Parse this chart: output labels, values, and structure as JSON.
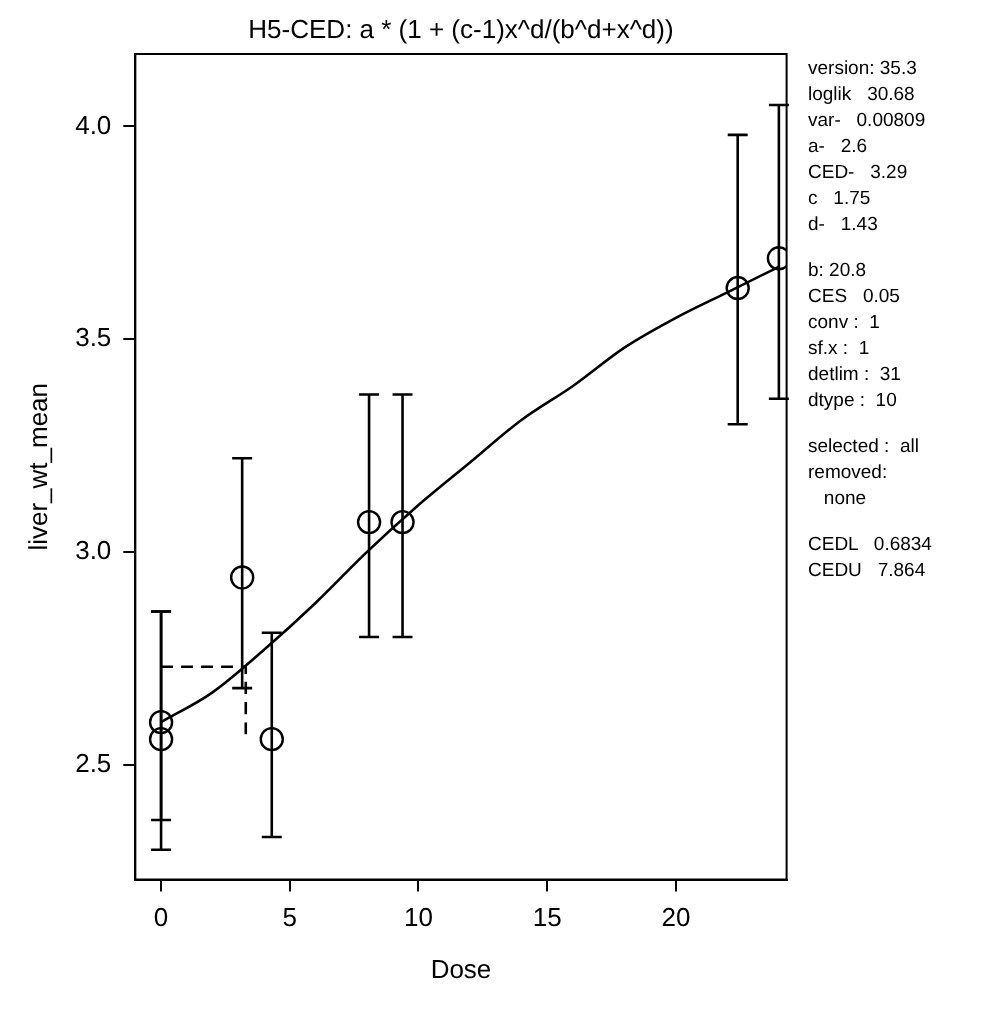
{
  "chart_data": {
    "type": "scatter",
    "title": "H5-CED: a * (1 + (c-1)x^d/(b^d+x^d))",
    "xlabel": "Dose",
    "ylabel": "liver_wt_mean",
    "xlim": [
      -1,
      24.3
    ],
    "xticks": [
      0,
      5,
      10,
      15,
      20
    ],
    "ylim": [
      2.23,
      4.17
    ],
    "yticks": [
      {
        "value": 2.5,
        "label": "2.5"
      },
      {
        "value": 3,
        "label": "3.0"
      },
      {
        "value": 3.5,
        "label": "3.5"
      },
      {
        "value": 4,
        "label": "4.0"
      }
    ],
    "grid": false,
    "legend": false,
    "series": [
      {
        "type": "scatter",
        "color": "#000000",
        "marker": "circle",
        "x": [
          0,
          0,
          3.15,
          4.3,
          8.08,
          9.38,
          22.4,
          24.0
        ],
        "values": [
          2.6,
          2.56,
          2.94,
          2.56,
          3.07,
          3.07,
          3.62,
          3.69
        ],
        "errors": [
          [
            2.37,
            2.86
          ],
          [
            2.3,
            2.86
          ],
          [
            2.68,
            3.22
          ],
          [
            2.33,
            2.81
          ],
          [
            2.8,
            3.37
          ],
          [
            2.8,
            3.37
          ],
          [
            3.3,
            3.98
          ],
          [
            3.36,
            4.05
          ]
        ]
      },
      {
        "type": "line",
        "color": "#000000",
        "marker": "none",
        "line_style": "solid",
        "x": [
          0,
          2,
          4,
          6,
          8,
          10,
          12,
          14,
          16,
          18,
          20,
          22,
          24
        ],
        "values": [
          2.6,
          2.67,
          2.77,
          2.88,
          3.0,
          3.11,
          3.21,
          3.31,
          3.39,
          3.48,
          3.55,
          3.61,
          3.67
        ]
      },
      {
        "type": "line",
        "color": "#000000",
        "marker": "none",
        "line_style": "dashed",
        "x": [
          0,
          3.29,
          3.29
        ],
        "values": [
          2.73,
          2.73,
          2.56
        ]
      }
    ],
    "annotations": [
      "version: 35.3\nloglik   30.68\nvar-   0.00809\na-   2.6\nCED-   3.29\nc   1.75\nd-   1.43",
      "b: 20.8\nCES   0.05\nconv :  1\nsf.x :  1\ndetlim :  31\ndtype :  10",
      "selected :  all\nremoved:\n   none",
      "CEDL   0.6834\nCEDU   7.864"
    ]
  }
}
